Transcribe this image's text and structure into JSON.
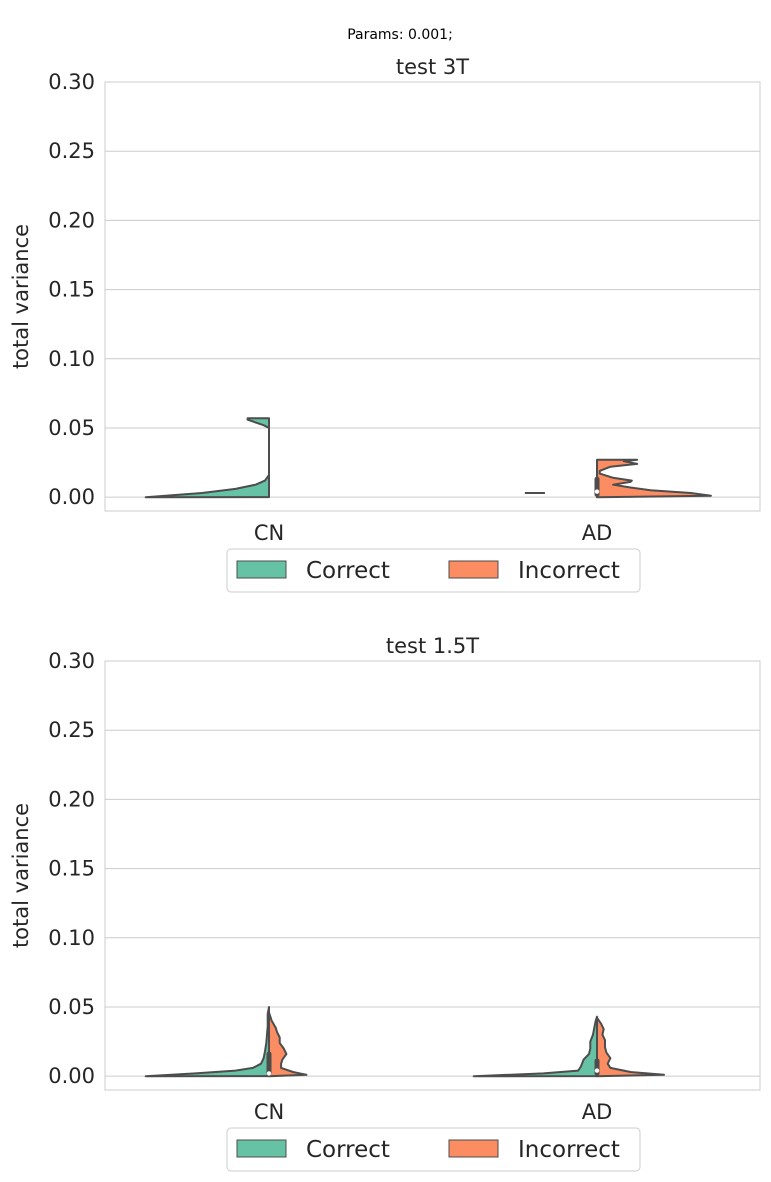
{
  "figure": {
    "suptitle": "Params: 0.001;"
  },
  "colors": {
    "correct": "#66c2a5",
    "incorrect": "#fc8d62",
    "outline": "#4d4d4d",
    "grid": "#cccccc"
  },
  "chart_data": [
    {
      "type": "violin",
      "title": "test 3T",
      "ylabel": "total variance",
      "xlabel": "",
      "ylim": [
        -0.01,
        0.3
      ],
      "yticks": [
        0.0,
        0.05,
        0.1,
        0.15,
        0.2,
        0.25,
        0.3
      ],
      "ytick_labels": [
        "0.00",
        "0.05",
        "0.10",
        "0.15",
        "0.20",
        "0.25",
        "0.30"
      ],
      "categories": [
        "CN",
        "AD"
      ],
      "grid": "horizontal",
      "legend": {
        "placement": "bottom-center",
        "entries": [
          "Correct",
          "Incorrect"
        ]
      },
      "series": [
        {
          "name": "Correct",
          "side": "left",
          "violins": [
            {
              "category": "CN",
              "profile": [
                [
                  0.0,
                  0.92
                ],
                [
                  0.003,
                  0.5
                ],
                [
                  0.006,
                  0.25
                ],
                [
                  0.009,
                  0.1
                ],
                [
                  0.012,
                  0.03
                ],
                [
                  0.016,
                  0.0
                ],
                [
                  0.05,
                  0.0
                ],
                [
                  0.052,
                  0.04
                ],
                [
                  0.056,
                  0.16
                ],
                [
                  0.057,
                  0.16
                ]
              ]
            },
            {
              "category": "AD",
              "profile": [
                [
                  0.003,
                  0.12
                ],
                [
                  0.0035,
                  0.12
                ]
              ]
            }
          ]
        },
        {
          "name": "Incorrect",
          "side": "right",
          "violins": [
            {
              "category": "AD",
              "profile": [
                [
                  0.0,
                  0.0
                ],
                [
                  0.001,
                  0.85
                ],
                [
                  0.003,
                  0.7
                ],
                [
                  0.005,
                  0.4
                ],
                [
                  0.007,
                  0.25
                ],
                [
                  0.009,
                  0.12
                ],
                [
                  0.011,
                  0.25
                ],
                [
                  0.012,
                  0.26
                ],
                [
                  0.014,
                  0.12
                ],
                [
                  0.017,
                  0.02
                ],
                [
                  0.019,
                  0.02
                ],
                [
                  0.022,
                  0.1
                ],
                [
                  0.024,
                  0.3
                ],
                [
                  0.026,
                  0.2
                ],
                [
                  0.027,
                  0.3
                ]
              ]
            }
          ]
        }
      ],
      "inner_boxes": [
        {
          "category": "AD",
          "low": 0.002,
          "high": 0.013,
          "median": 0.004
        }
      ]
    },
    {
      "type": "violin",
      "title": "test 1.5T",
      "ylabel": "total variance",
      "xlabel": "",
      "ylim": [
        -0.01,
        0.3
      ],
      "yticks": [
        0.0,
        0.05,
        0.1,
        0.15,
        0.2,
        0.25,
        0.3
      ],
      "ytick_labels": [
        "0.00",
        "0.05",
        "0.10",
        "0.15",
        "0.20",
        "0.25",
        "0.30"
      ],
      "categories": [
        "CN",
        "AD"
      ],
      "grid": "horizontal",
      "legend": {
        "placement": "bottom-center",
        "entries": [
          "Correct",
          "Incorrect"
        ]
      },
      "series": [
        {
          "name": "Correct",
          "side": "left",
          "violins": [
            {
              "category": "CN",
              "profile": [
                [
                  0.0,
                  0.92
                ],
                [
                  0.002,
                  0.55
                ],
                [
                  0.004,
                  0.25
                ],
                [
                  0.006,
                  0.12
                ],
                [
                  0.009,
                  0.06
                ],
                [
                  0.013,
                  0.04
                ],
                [
                  0.018,
                  0.03
                ],
                [
                  0.024,
                  0.02
                ],
                [
                  0.03,
                  0.015
                ],
                [
                  0.036,
                  0.01
                ],
                [
                  0.045,
                  0.01
                ],
                [
                  0.05,
                  0.0
                ]
              ]
            },
            {
              "category": "AD",
              "profile": [
                [
                  0.0,
                  0.92
                ],
                [
                  0.002,
                  0.4
                ],
                [
                  0.004,
                  0.14
                ],
                [
                  0.007,
                  0.12
                ],
                [
                  0.012,
                  0.1
                ],
                [
                  0.016,
                  0.06
                ],
                [
                  0.02,
                  0.05
                ],
                [
                  0.025,
                  0.05
                ],
                [
                  0.03,
                  0.03
                ],
                [
                  0.035,
                  0.02
                ],
                [
                  0.04,
                  0.01
                ],
                [
                  0.043,
                  0.0
                ]
              ]
            }
          ]
        },
        {
          "name": "Incorrect",
          "side": "right",
          "violins": [
            {
              "category": "CN",
              "profile": [
                [
                  0.0,
                  0.0
                ],
                [
                  0.001,
                  0.28
                ],
                [
                  0.003,
                  0.18
                ],
                [
                  0.006,
                  0.09
                ],
                [
                  0.009,
                  0.09
                ],
                [
                  0.012,
                  0.1
                ],
                [
                  0.016,
                  0.13
                ],
                [
                  0.02,
                  0.11
                ],
                [
                  0.024,
                  0.08
                ],
                [
                  0.028,
                  0.08
                ],
                [
                  0.032,
                  0.06
                ],
                [
                  0.035,
                  0.05
                ],
                [
                  0.04,
                  0.02
                ],
                [
                  0.046,
                  0.0
                ]
              ]
            },
            {
              "category": "AD",
              "profile": [
                [
                  0.0,
                  0.0
                ],
                [
                  0.001,
                  0.5
                ],
                [
                  0.003,
                  0.25
                ],
                [
                  0.006,
                  0.1
                ],
                [
                  0.009,
                  0.08
                ],
                [
                  0.013,
                  0.1
                ],
                [
                  0.017,
                  0.07
                ],
                [
                  0.021,
                  0.06
                ],
                [
                  0.026,
                  0.06
                ],
                [
                  0.03,
                  0.04
                ],
                [
                  0.034,
                  0.05
                ],
                [
                  0.038,
                  0.03
                ],
                [
                  0.042,
                  0.0
                ]
              ]
            }
          ]
        }
      ],
      "inner_boxes": [
        {
          "category": "CN",
          "low": 0.002,
          "high": 0.016,
          "median": 0.002
        },
        {
          "category": "AD",
          "low": 0.002,
          "high": 0.011,
          "median": 0.004
        }
      ]
    }
  ]
}
